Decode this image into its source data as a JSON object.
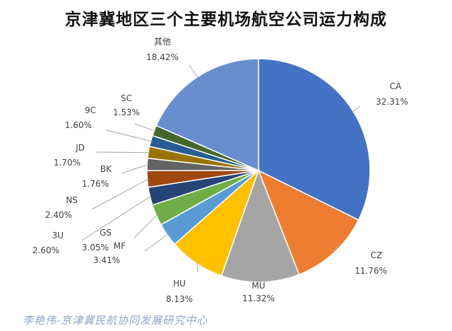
{
  "chart_data": {
    "type": "pie",
    "title": "京津冀地区三个主要机场航空公司运力构成",
    "slices": [
      {
        "name": "CA",
        "value": 32.31,
        "label": "32.31%",
        "color": "#4472c4"
      },
      {
        "name": "CZ",
        "value": 11.76,
        "label": "11.76%",
        "color": "#ed7d31"
      },
      {
        "name": "MU",
        "value": 11.32,
        "label": "11.32%",
        "color": "#a5a5a5"
      },
      {
        "name": "HU",
        "value": 8.13,
        "label": "8.13%",
        "color": "#ffc000"
      },
      {
        "name": "MF",
        "value": 3.41,
        "label": "3.41%",
        "color": "#5b9bd5"
      },
      {
        "name": "GS",
        "value": 3.05,
        "label": "3.05%",
        "color": "#70ad47"
      },
      {
        "name": "3U",
        "value": 2.6,
        "label": "2.60%",
        "color": "#264478"
      },
      {
        "name": "NS",
        "value": 2.4,
        "label": "2.40%",
        "color": "#9e480e"
      },
      {
        "name": "BK",
        "value": 1.76,
        "label": "1.76%",
        "color": "#636363"
      },
      {
        "name": "JD",
        "value": 1.7,
        "label": "1.70%",
        "color": "#997300"
      },
      {
        "name": "9C",
        "value": 1.6,
        "label": "1.60%",
        "color": "#255e91"
      },
      {
        "name": "SC",
        "value": 1.53,
        "label": "1.53%",
        "color": "#43682b"
      },
      {
        "name": "其他",
        "value": 18.42,
        "label": "18.42%",
        "color": "#698ed0"
      }
    ]
  },
  "watermark": "李艳伟-京津冀民航协同发展研究中心"
}
